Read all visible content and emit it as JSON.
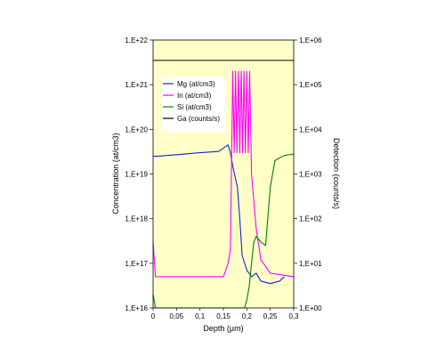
{
  "chart_data": {
    "type": "line",
    "xlabel": "Depth (µm)",
    "ylabel_left": "Concentration (at/cm3)",
    "ylabel_right": "Detection (counts/s)",
    "xlim": [
      0,
      0.3
    ],
    "ylim_left": [
      1e+16,
      1e+22
    ],
    "ylim_right": [
      1,
      1000000
    ],
    "y_scale": "log",
    "grid": false,
    "legend_placement": "upper-left",
    "background_color": "#FFFFC8",
    "x_ticks": [
      "0",
      "0,05",
      "0,1",
      "0,15",
      "0,2",
      "0,25",
      "0,3"
    ],
    "y_ticks_left": [
      "1,E+16",
      "1,E+17",
      "1,E+18",
      "1,E+19",
      "1,E+20",
      "1,E+21",
      "1,E+22"
    ],
    "y_ticks_right": [
      "1,E+00",
      "1,E+01",
      "1,E+02",
      "1,E+03",
      "1,E+04",
      "1,E+05",
      "1,E+06"
    ],
    "series": [
      {
        "name": "Mg (at/cm3)",
        "color": "#1F1FD0",
        "axis": "left",
        "x": [
          0,
          0.01,
          0.05,
          0.1,
          0.14,
          0.16,
          0.165,
          0.17,
          0.18,
          0.185,
          0.19,
          0.2,
          0.21,
          0.22,
          0.23,
          0.25,
          0.27,
          0.28
        ],
        "y": [
          2.5e+19,
          2.5e+19,
          2.7e+19,
          3e+19,
          3.2e+19,
          4.5e+19,
          3e+19,
          1.5e+19,
          5e+18,
          1e+18,
          1.5e+17,
          7e+16,
          5e+16,
          6e+16,
          4e+16,
          3.5e+16,
          4e+16,
          5e+16
        ]
      },
      {
        "name": "In (at/cm3)",
        "color": "#FF00FF",
        "axis": "left",
        "x": [
          0,
          0.005,
          0.01,
          0.15,
          0.155,
          0.16,
          0.165,
          0.17,
          0.173,
          0.176,
          0.179,
          0.182,
          0.185,
          0.188,
          0.191,
          0.194,
          0.197,
          0.2,
          0.203,
          0.206,
          0.21,
          0.22,
          0.23,
          0.25,
          0.3
        ],
        "y": [
          3e+17,
          5e+16,
          5e+16,
          5e+16,
          7e+16,
          1e+17,
          2e+17,
          2e+21,
          3e+19,
          2e+21,
          3e+19,
          2e+21,
          3e+19,
          2e+21,
          3e+19,
          2e+21,
          3e+19,
          2e+21,
          3e+19,
          2e+21,
          1e+19,
          6e+17,
          1.2e+17,
          6e+16,
          5e+16
        ]
      },
      {
        "name": "Si (at/cm3)",
        "color": "#008000",
        "axis": "left",
        "x": [
          0,
          0.005,
          0.01,
          0.195,
          0.2,
          0.205,
          0.21,
          0.215,
          0.22,
          0.23,
          0.24,
          0.25,
          0.26,
          0.27,
          0.28,
          0.29,
          0.3
        ],
        "y": [
          2e+16,
          1e+16,
          1e+16,
          1e+16,
          1.5e+16,
          3e+16,
          1e+17,
          3e+17,
          4e+17,
          3e+17,
          2.5e+17,
          5e+18,
          2e+19,
          2.3e+19,
          2.6e+19,
          2.7e+19,
          2.8e+19
        ]
      },
      {
        "name": "Ga (counts/s)",
        "color": "#000000",
        "axis": "right",
        "x": [
          0,
          0.05,
          0.1,
          0.15,
          0.2,
          0.25,
          0.3
        ],
        "y": [
          350000,
          350000,
          350000,
          350000,
          350000,
          350000,
          350000
        ]
      }
    ]
  }
}
